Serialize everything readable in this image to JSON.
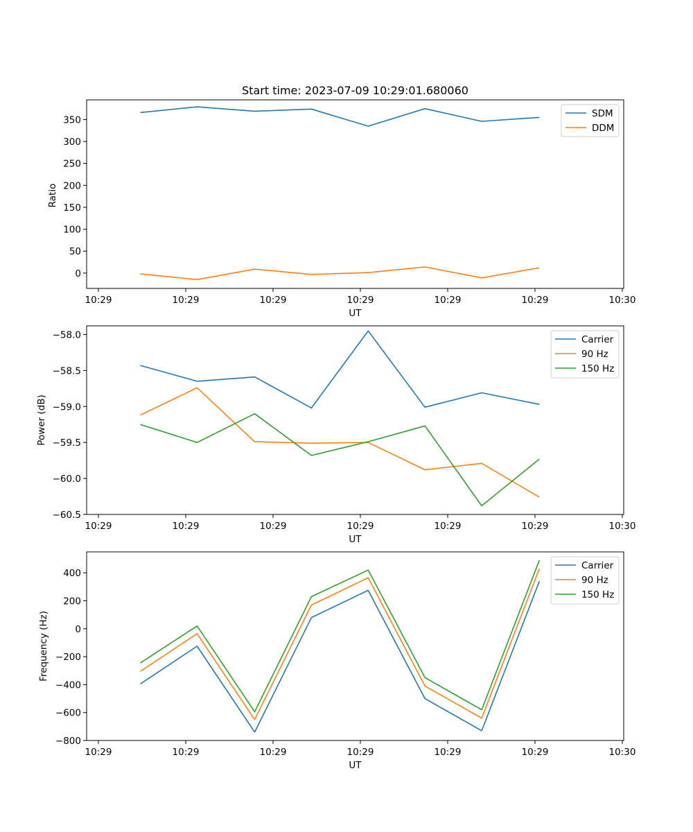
{
  "chart_data": [
    {
      "type": "line",
      "title": "Start time: 2023-07-09 10:29:01.680060",
      "xlabel": "UT",
      "ylabel": "Ratio",
      "xticks": [
        "10:29",
        "10:29",
        "10:29",
        "10:29",
        "10:29",
        "10:29",
        "10:30"
      ],
      "xlim": [
        0,
        6
      ],
      "x": [
        0.48,
        1.13,
        1.79,
        2.44,
        3.09,
        3.74,
        4.39,
        5.05
      ],
      "ylim": [
        -35,
        395
      ],
      "yticks": [
        0,
        50,
        100,
        150,
        200,
        250,
        300,
        350
      ],
      "ytick_labels": [
        "0",
        "50",
        "100",
        "150",
        "200",
        "250",
        "300",
        "350"
      ],
      "legend": "top-right",
      "series": [
        {
          "name": "SDM",
          "color": "#1f77b4",
          "values": [
            366,
            379,
            369,
            374,
            335,
            375,
            346,
            355
          ]
        },
        {
          "name": "DDM",
          "color": "#ff7f0e",
          "values": [
            -2,
            -15,
            9,
            -3,
            1,
            14,
            -11,
            12
          ]
        }
      ]
    },
    {
      "type": "line",
      "title": "",
      "xlabel": "UT",
      "ylabel": "Power (dB)",
      "xticks": [
        "10:29",
        "10:29",
        "10:29",
        "10:29",
        "10:29",
        "10:29",
        "10:30"
      ],
      "xlim": [
        0,
        6
      ],
      "x": [
        0.48,
        1.13,
        1.79,
        2.44,
        3.09,
        3.74,
        4.39,
        5.05
      ],
      "ylim": [
        -60.5,
        -57.88
      ],
      "yticks": [
        -58.0,
        -58.5,
        -59.0,
        -59.5,
        -60.0,
        -60.5
      ],
      "ytick_labels": [
        "−58.0",
        "−58.5",
        "−59.0",
        "−59.5",
        "−60.0",
        "−60.5"
      ],
      "legend": "top-right",
      "series": [
        {
          "name": "Carrier",
          "color": "#1f77b4",
          "values": [
            -58.43,
            -58.65,
            -58.59,
            -59.02,
            -57.95,
            -59.01,
            -58.81,
            -58.97
          ]
        },
        {
          "name": "90 Hz",
          "color": "#ff7f0e",
          "values": [
            -59.12,
            -58.74,
            -59.49,
            -59.51,
            -59.5,
            -59.88,
            -59.79,
            -60.26
          ]
        },
        {
          "name": "150 Hz",
          "color": "#2ca02c",
          "values": [
            -59.25,
            -59.5,
            -59.1,
            -59.68,
            -59.49,
            -59.27,
            -60.38,
            -59.73
          ]
        }
      ]
    },
    {
      "type": "line",
      "title": "",
      "xlabel": "UT",
      "ylabel": "Frequency (Hz)",
      "xticks": [
        "10:29",
        "10:29",
        "10:29",
        "10:29",
        "10:29",
        "10:29",
        "10:30"
      ],
      "xlim": [
        0,
        6
      ],
      "x": [
        0.48,
        1.13,
        1.79,
        2.44,
        3.09,
        3.74,
        4.39,
        5.05
      ],
      "ylim": [
        -800,
        550
      ],
      "yticks": [
        -800,
        -600,
        -400,
        -200,
        0,
        200,
        400
      ],
      "ytick_labels": [
        "−800",
        "−600",
        "−400",
        "−200",
        "0",
        "200",
        "400"
      ],
      "legend": "top-right",
      "series": [
        {
          "name": "Carrier",
          "color": "#1f77b4",
          "values": [
            -395,
            -125,
            -740,
            80,
            275,
            -500,
            -730,
            340
          ]
        },
        {
          "name": "90 Hz",
          "color": "#ff7f0e",
          "values": [
            -305,
            -35,
            -650,
            170,
            365,
            -410,
            -640,
            430
          ]
        },
        {
          "name": "150 Hz",
          "color": "#2ca02c",
          "values": [
            -245,
            20,
            -595,
            230,
            420,
            -350,
            -580,
            490
          ]
        }
      ]
    }
  ]
}
